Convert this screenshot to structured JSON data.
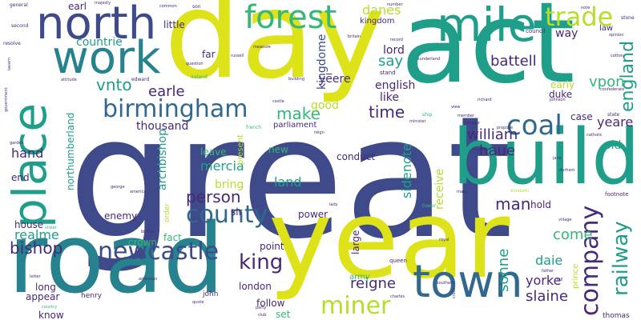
{
  "palette": {
    "background": "#ffffff",
    "yellow": "#dde318",
    "lime": "#b5de2b",
    "green": "#6ece58",
    "mint": "#35b779",
    "teal": "#1f9e89",
    "cyan": "#26828e",
    "blue": "#31688e",
    "indigo": "#3e4a89",
    "violet": "#482878",
    "purple": "#440154"
  },
  "words": [
    {
      "text": "great",
      "color": "indigo"
    },
    {
      "text": "day",
      "color": "yellow"
    },
    {
      "text": "act",
      "color": "teal"
    },
    {
      "text": "year",
      "color": "yellow"
    },
    {
      "text": "road",
      "color": "cyan"
    },
    {
      "text": "build",
      "color": "teal"
    },
    {
      "text": "place",
      "color": "teal"
    },
    {
      "text": "mile",
      "color": "teal"
    },
    {
      "text": "north",
      "color": "indigo"
    },
    {
      "text": "work",
      "color": "cyan"
    },
    {
      "text": "town",
      "color": "blue"
    },
    {
      "text": "forest",
      "color": "mint"
    },
    {
      "text": "trade",
      "color": "lime"
    },
    {
      "text": "birmingham",
      "color": "blue"
    },
    {
      "text": "county",
      "color": "blue"
    },
    {
      "text": "coal",
      "color": "blue"
    },
    {
      "text": "company",
      "color": "violet"
    },
    {
      "text": "railway",
      "color": "teal"
    },
    {
      "text": "newcastle",
      "color": "indigo"
    },
    {
      "text": "miner",
      "color": "lime"
    },
    {
      "text": "england",
      "color": "teal"
    },
    {
      "text": "king",
      "color": "violet"
    },
    {
      "text": "person",
      "color": "violet"
    },
    {
      "text": "william",
      "color": "violet"
    },
    {
      "text": "vnto",
      "color": "teal"
    },
    {
      "text": "make",
      "color": "mint"
    },
    {
      "text": "time",
      "color": "violet"
    },
    {
      "text": "bishop",
      "color": "violet"
    },
    {
      "text": "man",
      "color": "violet"
    },
    {
      "text": "sonne",
      "color": "teal"
    },
    {
      "text": "come",
      "color": "mint"
    },
    {
      "text": "haue",
      "color": "violet"
    },
    {
      "text": "yeare",
      "color": "violet"
    },
    {
      "text": "yorke",
      "color": "violet"
    },
    {
      "text": "daie",
      "color": "teal"
    },
    {
      "text": "slaine",
      "color": "violet"
    },
    {
      "text": "reigne",
      "color": "violet"
    },
    {
      "text": "battell",
      "color": "violet"
    },
    {
      "text": "vpon",
      "color": "mint"
    },
    {
      "text": "earle",
      "color": "violet"
    },
    {
      "text": "say",
      "color": "teal"
    },
    {
      "text": "danes",
      "color": "lime"
    },
    {
      "text": "countrie",
      "color": "teal"
    },
    {
      "text": "mercia",
      "color": "teal"
    },
    {
      "text": "land",
      "color": "teal"
    },
    {
      "text": "realme",
      "color": "teal"
    },
    {
      "text": "sidenote",
      "color": "teal"
    },
    {
      "text": "archbishop",
      "color": "teal"
    },
    {
      "text": "hand",
      "color": "violet"
    },
    {
      "text": "kingdome",
      "color": "indigo"
    },
    {
      "text": "way",
      "color": "violet"
    },
    {
      "text": "old",
      "color": "teal"
    },
    {
      "text": "northumberland",
      "color": "teal"
    },
    {
      "text": "lord",
      "color": "violet"
    },
    {
      "text": "english",
      "color": "violet"
    },
    {
      "text": "like",
      "color": "violet"
    },
    {
      "text": "good",
      "color": "lime"
    },
    {
      "text": "thousand",
      "color": "violet"
    },
    {
      "text": "case",
      "color": "violet"
    },
    {
      "text": "duke",
      "color": "violet"
    },
    {
      "text": "early",
      "color": "lime"
    },
    {
      "text": "bring",
      "color": "lime"
    },
    {
      "text": "leave",
      "color": "mint"
    },
    {
      "text": "conduct",
      "color": "violet"
    },
    {
      "text": "receive",
      "color": "lime"
    },
    {
      "text": "hold",
      "color": "violet"
    },
    {
      "text": "london",
      "color": "violet"
    },
    {
      "text": "long",
      "color": "violet"
    },
    {
      "text": "appear",
      "color": "violet"
    },
    {
      "text": "enemy",
      "color": "violet"
    },
    {
      "text": "point",
      "color": "violet"
    },
    {
      "text": "power",
      "color": "violet"
    },
    {
      "text": "crown",
      "color": "mint"
    },
    {
      "text": "army",
      "color": "mint"
    },
    {
      "text": "follow",
      "color": "violet"
    },
    {
      "text": "set",
      "color": "mint"
    },
    {
      "text": "house",
      "color": "violet"
    },
    {
      "text": "end",
      "color": "violet"
    },
    {
      "text": "sir",
      "color": "violet"
    },
    {
      "text": "new",
      "color": "mint"
    },
    {
      "text": "large",
      "color": "violet"
    },
    {
      "text": "fact",
      "color": "mint"
    },
    {
      "text": "little",
      "color": "violet"
    },
    {
      "text": "far",
      "color": "violet"
    },
    {
      "text": "ye̅ere",
      "color": "violet"
    },
    {
      "text": "earl",
      "color": "violet"
    },
    {
      "text": "kingdom",
      "color": "violet"
    },
    {
      "text": "present",
      "color": "lime"
    },
    {
      "text": "order",
      "color": "lime"
    },
    {
      "text": "know",
      "color": "violet"
    },
    {
      "text": "parliament",
      "color": "violet"
    },
    {
      "text": "prince",
      "color": "lime"
    },
    {
      "text": "thomas",
      "color": "violet"
    },
    {
      "text": "john",
      "color": "violet"
    },
    {
      "text": "henry",
      "color": "violet"
    },
    {
      "text": "queen",
      "color": "violet"
    },
    {
      "text": "law",
      "color": "violet"
    },
    {
      "text": "council",
      "color": "violet"
    },
    {
      "text": "edward",
      "color": "violet"
    },
    {
      "text": "ireland",
      "color": "mint"
    },
    {
      "text": "french",
      "color": "mint"
    },
    {
      "text": "stand",
      "color": "violet"
    },
    {
      "text": "son",
      "color": "violet"
    },
    {
      "text": "general",
      "color": "violet"
    },
    {
      "text": "majesty",
      "color": "violet"
    },
    {
      "text": "common",
      "color": "violet"
    },
    {
      "text": "number",
      "color": "violet"
    },
    {
      "text": "second",
      "color": "violet"
    },
    {
      "text": "resolve",
      "color": "violet"
    },
    {
      "text": "tavern",
      "color": "violet"
    },
    {
      "text": "government",
      "color": "violet"
    },
    {
      "text": "garden",
      "color": "violet"
    },
    {
      "text": "street",
      "color": "mint"
    },
    {
      "text": "letter",
      "color": "violet"
    },
    {
      "text": "country",
      "color": "mint"
    },
    {
      "text": "question",
      "color": "violet"
    },
    {
      "text": "russell",
      "color": "violet"
    },
    {
      "text": "measure",
      "color": "violet"
    },
    {
      "text": "building",
      "color": "violet"
    },
    {
      "text": "attitude",
      "color": "violet"
    },
    {
      "text": "castle",
      "color": "violet"
    },
    {
      "text": "member",
      "color": "violet"
    },
    {
      "text": "view",
      "color": "violet"
    },
    {
      "text": "minister",
      "color": "violet"
    },
    {
      "text": "ship",
      "color": "mint"
    },
    {
      "text": "hotspur",
      "color": "violet"
    },
    {
      "text": "propose",
      "color": "violet"
    },
    {
      "text": "marriage",
      "color": "violet"
    },
    {
      "text": "state",
      "color": "violet"
    },
    {
      "text": "catholic",
      "color": "violet"
    },
    {
      "text": "johnson",
      "color": "violet"
    },
    {
      "text": "richard",
      "color": "violet"
    },
    {
      "text": "confederate",
      "color": "violet"
    },
    {
      "text": "cotton",
      "color": "violet"
    },
    {
      "text": "opinion",
      "color": "violet"
    },
    {
      "text": "stone",
      "color": "violet"
    },
    {
      "text": "note",
      "color": "violet"
    },
    {
      "text": "sunderland",
      "color": "violet"
    },
    {
      "text": "britain",
      "color": "violet"
    },
    {
      "text": "record",
      "color": "violet"
    },
    {
      "text": "reign",
      "color": "violet"
    },
    {
      "text": "tower",
      "color": "mint"
    },
    {
      "text": "elizabeth",
      "color": "lime"
    },
    {
      "text": "mary",
      "color": "violet"
    },
    {
      "text": "lady",
      "color": "violet"
    },
    {
      "text": "durham",
      "color": "violet"
    },
    {
      "text": "jane",
      "color": "violet"
    },
    {
      "text": "footnote",
      "color": "violet"
    },
    {
      "text": "village",
      "color": "violet"
    },
    {
      "text": "george",
      "color": "violet"
    },
    {
      "text": "america",
      "color": "violet"
    },
    {
      "text": "british",
      "color": "violet"
    },
    {
      "text": "party",
      "color": "violet"
    },
    {
      "text": "club",
      "color": "violet"
    },
    {
      "text": "charles",
      "color": "violet"
    },
    {
      "text": "southern",
      "color": "violet"
    },
    {
      "text": "royal",
      "color": "violet"
    },
    {
      "text": "father",
      "color": "violet"
    },
    {
      "text": "hill",
      "color": "violet"
    },
    {
      "text": "american",
      "color": "violet"
    },
    {
      "text": "quote",
      "color": "violet"
    },
    {
      "text": "cross",
      "color": "violet"
    }
  ]
}
